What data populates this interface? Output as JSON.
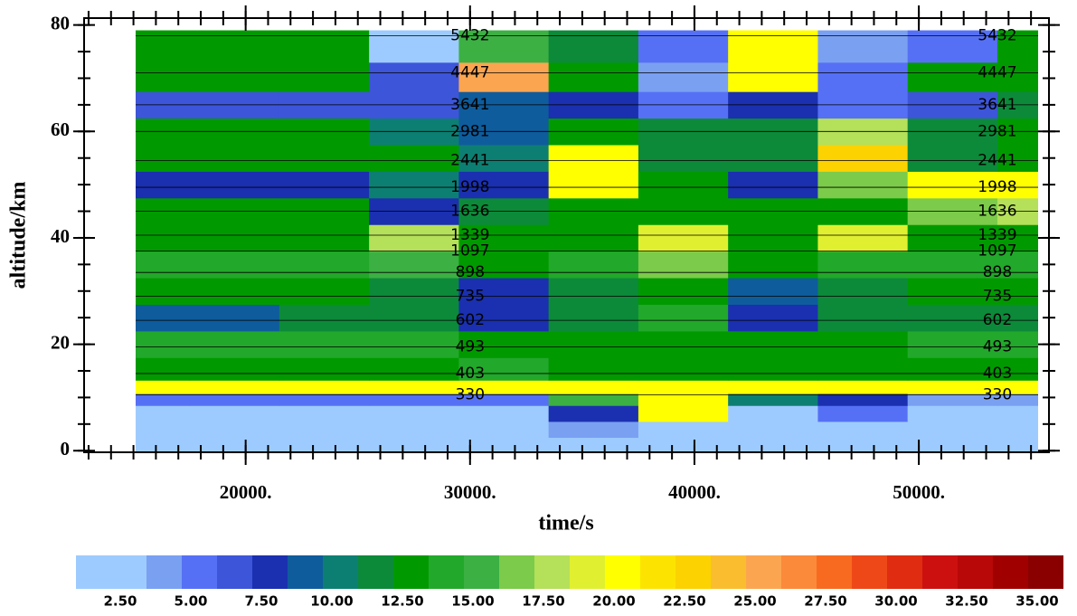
{
  "chart_data": {
    "type": "contour",
    "x_label": "time/s",
    "y_label": "altitude/km",
    "xlim": [
      12800,
      55800
    ],
    "ylim": [
      -0.3,
      81.3
    ],
    "xticks": [
      {
        "value": 20000,
        "label": "20000."
      },
      {
        "value": 30000,
        "label": "30000."
      },
      {
        "value": 40000,
        "label": "40000."
      },
      {
        "value": 50000,
        "label": "50000."
      }
    ],
    "yticks": [
      0,
      20,
      40,
      60,
      80
    ],
    "x_minor_step": 1000,
    "y_minor_step": 5,
    "x": [
      15500,
      19500,
      23500,
      27500,
      31500,
      35500,
      39500,
      43500,
      47500,
      51500,
      55500
    ],
    "y": [
      1,
      4,
      7,
      10,
      11.5,
      15,
      20,
      25,
      30,
      35,
      40,
      45,
      50,
      55,
      60,
      65,
      70,
      76
    ],
    "z": [
      [
        3,
        3,
        2,
        2,
        2,
        2,
        2,
        3,
        2,
        2,
        3
      ],
      [
        3,
        3,
        2,
        2,
        3,
        4,
        2,
        2,
        3,
        3,
        3
      ],
      [
        3,
        3,
        2,
        2,
        3,
        8,
        20,
        3,
        5,
        3,
        3
      ],
      [
        5,
        5,
        5,
        5,
        5,
        15,
        20,
        10,
        8,
        4,
        4
      ],
      [
        20,
        20,
        20,
        20,
        20,
        20,
        20,
        20,
        20,
        20,
        20
      ],
      [
        13,
        13,
        13,
        13,
        14,
        13,
        13,
        13,
        13,
        13,
        13
      ],
      [
        14,
        14,
        14,
        14,
        13,
        13,
        13,
        13,
        13,
        14,
        14
      ],
      [
        9,
        9,
        12,
        12,
        8,
        12,
        14,
        8,
        12,
        12,
        12
      ],
      [
        13,
        13,
        13,
        12,
        8,
        12,
        13,
        9,
        12,
        13,
        13
      ],
      [
        14,
        14,
        14,
        16,
        13,
        14,
        17,
        13,
        14,
        14,
        14
      ],
      [
        13,
        13,
        13,
        18,
        13,
        13,
        19,
        13,
        19,
        13,
        13
      ],
      [
        13,
        13,
        13,
        8,
        12,
        13,
        13,
        13,
        13,
        17,
        18
      ],
      [
        8,
        8,
        8,
        10,
        8,
        20,
        13,
        8,
        17,
        20,
        20
      ],
      [
        13,
        13,
        13,
        13,
        10,
        21,
        12,
        12,
        23,
        12,
        13
      ],
      [
        13,
        13,
        13,
        10,
        9,
        13,
        12,
        12,
        18,
        12,
        13
      ],
      [
        7,
        7,
        7,
        7,
        9,
        8,
        6,
        8,
        6,
        7,
        12
      ],
      [
        13,
        13,
        13,
        7,
        25,
        13,
        4,
        20,
        5,
        13,
        13
      ],
      [
        13,
        13,
        13,
        3,
        15,
        12,
        5,
        20,
        4,
        6,
        13
      ]
    ],
    "isolines": {
      "values": [
        330,
        403,
        493,
        602,
        735,
        898,
        1097,
        1339,
        1636,
        1998,
        2441,
        2981,
        3641,
        4447,
        5432
      ],
      "altitude": [
        10.5,
        14.5,
        19.5,
        24.5,
        29,
        33.5,
        37.5,
        40.5,
        45,
        49.5,
        54.5,
        60,
        65,
        71,
        78
      ]
    },
    "colorbar": {
      "edges": [
        1.25,
        3.75,
        5,
        6.25,
        7.5,
        8.75,
        10,
        11.25,
        12.5,
        13.75,
        15,
        16.25,
        17.5,
        18.75,
        20,
        21.25,
        22.5,
        23.75,
        25,
        26.25,
        27.5,
        28.75,
        30,
        31.25,
        32.5,
        33.75,
        35,
        36.25
      ],
      "colors": [
        "#9ecbff",
        "#7aa0f2",
        "#5670f5",
        "#3d55d9",
        "#1a30b0",
        "#0e5c9c",
        "#0d7f72",
        "#0c8a3a",
        "#009a00",
        "#22a82a",
        "#3cb043",
        "#7ccb4a",
        "#b5e05a",
        "#e0f030",
        "#ffff00",
        "#fde400",
        "#fcd200",
        "#fbbd30",
        "#fca550",
        "#fb8a3a",
        "#f86a20",
        "#ee4818",
        "#e02c10",
        "#cc1010",
        "#b80808",
        "#a00000",
        "#8a0000"
      ],
      "ticks": [
        {
          "value": 2.5,
          "label": "2.50"
        },
        {
          "value": 5,
          "label": "5.00"
        },
        {
          "value": 7.5,
          "label": "7.50"
        },
        {
          "value": 10,
          "label": "10.00"
        },
        {
          "value": 12.5,
          "label": "12.50"
        },
        {
          "value": 15,
          "label": "15.00"
        },
        {
          "value": 17.5,
          "label": "17.50"
        },
        {
          "value": 20,
          "label": "20.00"
        },
        {
          "value": 22.5,
          "label": "22.50"
        },
        {
          "value": 25,
          "label": "25.00"
        },
        {
          "value": 27.5,
          "label": "27.50"
        },
        {
          "value": 30,
          "label": "30.00"
        },
        {
          "value": 32.5,
          "label": "32.50"
        },
        {
          "value": 35,
          "label": "35.00"
        }
      ]
    }
  }
}
